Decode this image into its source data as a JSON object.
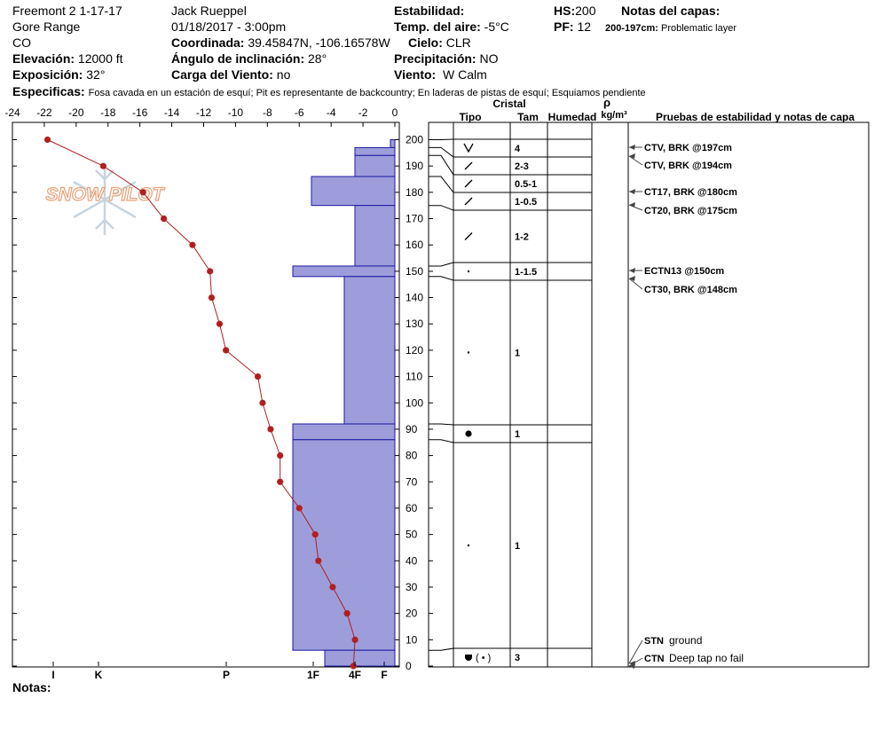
{
  "header": {
    "site": "Freemont 2 1-17-17",
    "range": "Gore Range",
    "state": "CO",
    "elevation_label": "Elevación:",
    "elevation_value": "12000 ft",
    "aspect_label": "Exposición:",
    "aspect_value": "32°",
    "observer": "Jack Rueppel",
    "datetime": "01/18/2017 - 3:00pm",
    "coord_label": "Coordinada:",
    "coord_value": "39.45847N, -106.16578W",
    "angle_label": "Ángulo de inclinación:",
    "angle_value": "28°",
    "wind_load_label": "Carga del Viento:",
    "wind_load_value": "no",
    "stability_label": "Estabilidad:",
    "air_temp_label": "Temp. del aire:",
    "air_temp_value": "-5°C",
    "sky_label": "Cielo:",
    "sky_value": "CLR",
    "precip_label": "Precipitación:",
    "precip_value": "NO",
    "wind_label": "Viento:",
    "wind_value": "W Calm",
    "hs_label": "HS:",
    "hs_value": "200",
    "pf_label": "PF:",
    "pf_value": "12",
    "layer_notes_label": "Notas del capas:",
    "layer_note_range": "200-197cm:",
    "layer_note_text": "Problematic layer",
    "specifics_label": "Especificas:",
    "specifics_text": "Fosa cavada en un estación de esquí; Pit es representante de backcountry; En laderas de pistas de esquí; Esquiamos pendiente",
    "notes_label": "Notas:"
  },
  "logo_text": "SNOW PILOT",
  "columns": {
    "crystal": "Cristal",
    "type": "Tipo",
    "size": "Tam",
    "moisture": "Humedad",
    "rho": "ρ",
    "density_unit": "kg/m³",
    "tests": "Pruebas de estabilidad y notas de capa"
  },
  "colors": {
    "hardness_fill": "#9d9ddb",
    "hardness_stroke": "#1a1aa0",
    "temp_line": "#b0201f",
    "temp_point": "#b0201f"
  },
  "chart_data": {
    "type": "line",
    "temperature_axis": {
      "label": "",
      "range": [
        -24,
        0
      ],
      "ticks": [
        -24,
        -22,
        -20,
        -18,
        -16,
        -14,
        -12,
        -10,
        -8,
        -6,
        -4,
        -2,
        0
      ]
    },
    "height_axis": {
      "range": [
        0,
        200
      ],
      "ticks": [
        0,
        10,
        20,
        30,
        40,
        50,
        60,
        70,
        80,
        90,
        100,
        110,
        120,
        130,
        140,
        150,
        160,
        170,
        180,
        190,
        200
      ]
    },
    "hardness_axis": {
      "labels": [
        "I",
        "K",
        "P",
        "1F",
        "4F",
        "F"
      ]
    },
    "temperature_profile": {
      "depth": [
        200,
        190,
        180,
        170,
        160,
        150,
        140,
        130,
        120,
        110,
        100,
        90,
        80,
        70,
        60,
        50,
        40,
        30,
        20,
        10,
        0
      ],
      "temp": [
        -21.8,
        -18.3,
        -15.8,
        -14.5,
        -12.7,
        -11.6,
        -11.5,
        -11.0,
        -10.6,
        -8.6,
        -8.3,
        -7.8,
        -7.2,
        -7.2,
        -6.0,
        -5.0,
        -4.8,
        -3.9,
        -3.0,
        -2.5,
        -2.6
      ]
    },
    "hardness_layers": [
      {
        "top": 200,
        "bottom": 197,
        "hardness": "F"
      },
      {
        "top": 197,
        "bottom": 194,
        "hardness": "4F"
      },
      {
        "top": 194,
        "bottom": 186,
        "hardness": "4F"
      },
      {
        "top": 186,
        "bottom": 175,
        "hardness": "1F"
      },
      {
        "top": 175,
        "bottom": 152,
        "hardness": "4F"
      },
      {
        "top": 152,
        "bottom": 148,
        "hardness": "1F-"
      },
      {
        "top": 148,
        "bottom": 92,
        "hardness": "4F+"
      },
      {
        "top": 92,
        "bottom": 86,
        "hardness": "1F-"
      },
      {
        "top": 86,
        "bottom": 6,
        "hardness": "1F-"
      },
      {
        "top": 6,
        "bottom": 0,
        "hardness": "1F+"
      }
    ],
    "strat_layers": [
      {
        "top": 200,
        "bottom": 197,
        "type": "surface-hoar",
        "size": "4"
      },
      {
        "top": 197,
        "bottom": 194,
        "type": "decomposing",
        "size": "2-3"
      },
      {
        "top": 194,
        "bottom": 186,
        "type": "decomposing",
        "size": "0.5-1"
      },
      {
        "top": 186,
        "bottom": 175,
        "type": "decomposing",
        "size": "1-0.5"
      },
      {
        "top": 175,
        "bottom": 152,
        "type": "decomposing",
        "size": "1-2"
      },
      {
        "top": 152,
        "bottom": 148,
        "type": "rounded",
        "size": "1-1.5"
      },
      {
        "top": 148,
        "bottom": 92,
        "type": "rounded",
        "size": "1"
      },
      {
        "top": 92,
        "bottom": 86,
        "type": "melt-freeze",
        "size": "1"
      },
      {
        "top": 86,
        "bottom": 6,
        "type": "rounded",
        "size": "1"
      },
      {
        "top": 6,
        "bottom": 0,
        "type": "depth-hoar-rounded",
        "size": "3"
      }
    ],
    "tests": [
      {
        "depth": 197,
        "label": "CTV, BRK @197cm",
        "note": ""
      },
      {
        "depth": 194,
        "label": "CTV, BRK @194cm",
        "note": ""
      },
      {
        "depth": 180,
        "label": "CT17, BRK @180cm",
        "note": ""
      },
      {
        "depth": 175,
        "label": "CT20, BRK @175cm",
        "note": ""
      },
      {
        "depth": 150,
        "label": "ECTN13 @150cm",
        "note": ""
      },
      {
        "depth": 148,
        "label": "CT30, BRK @148cm",
        "note": ""
      },
      {
        "depth": 0,
        "label": "STN",
        "note": "ground"
      },
      {
        "depth": 0,
        "label": "CTN",
        "note": "Deep tap no fail"
      }
    ]
  }
}
